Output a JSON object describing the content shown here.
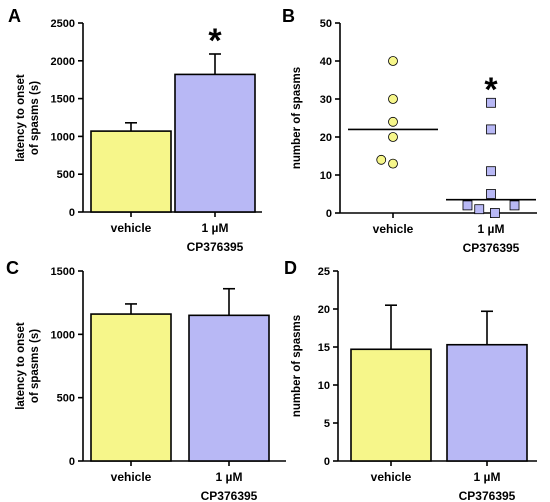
{
  "panels": {
    "A": {
      "letter": "A"
    },
    "B": {
      "letter": "B"
    },
    "C": {
      "letter": "C"
    },
    "D": {
      "letter": "D"
    }
  },
  "chart_data": [
    {
      "panel": "A",
      "type": "bar",
      "categories": [
        "vehicle",
        "1 µM"
      ],
      "category_sublabels": [
        "",
        "CP376395"
      ],
      "values": [
        1070,
        1820
      ],
      "errors": [
        110,
        270
      ],
      "colors": [
        "#f6f68a",
        "#b8b8f5"
      ],
      "ylabel": [
        "latency to onset",
        "of spasms (s)"
      ],
      "ylim": [
        0,
        2500
      ],
      "yticks": [
        0,
        500,
        1000,
        1500,
        2000,
        2500
      ],
      "annotations": [
        {
          "category": "1 µM",
          "text": "*"
        }
      ]
    },
    {
      "panel": "B",
      "type": "scatter",
      "categories": [
        "vehicle",
        "1 µM"
      ],
      "category_sublabels": [
        "",
        "CP376395"
      ],
      "points": [
        {
          "category": "vehicle",
          "y": 40,
          "jitter": 0
        },
        {
          "category": "vehicle",
          "y": 30,
          "jitter": 0
        },
        {
          "category": "vehicle",
          "y": 24,
          "jitter": 0
        },
        {
          "category": "vehicle",
          "y": 20,
          "jitter": 0
        },
        {
          "category": "vehicle",
          "y": 14,
          "jitter": -0.12
        },
        {
          "category": "vehicle",
          "y": 13,
          "jitter": 0
        },
        {
          "category": "1 µM",
          "y": 29,
          "jitter": 0
        },
        {
          "category": "1 µM",
          "y": 22,
          "jitter": 0
        },
        {
          "category": "1 µM",
          "y": 11,
          "jitter": 0
        },
        {
          "category": "1 µM",
          "y": 5,
          "jitter": 0
        },
        {
          "category": "1 µM",
          "y": 2,
          "jitter": -0.24
        },
        {
          "category": "1 µM",
          "y": 2,
          "jitter": 0.24
        },
        {
          "category": "1 µM",
          "y": 1,
          "jitter": -0.12
        },
        {
          "category": "1 µM",
          "y": 0,
          "jitter": 0.04
        }
      ],
      "means": [
        22,
        3.5
      ],
      "marker_colors": [
        "#f6f68a",
        "#b8b8f5"
      ],
      "marker_shapes": [
        "circle",
        "square"
      ],
      "ylabel": [
        "number of spasms"
      ],
      "ylim": [
        0,
        50
      ],
      "yticks": [
        0,
        10,
        20,
        30,
        40,
        50
      ],
      "annotations": [
        {
          "category": "1 µM",
          "text": "*"
        }
      ]
    },
    {
      "panel": "C",
      "type": "bar",
      "categories": [
        "vehicle",
        "1 µM"
      ],
      "category_sublabels": [
        "",
        "CP376395"
      ],
      "values": [
        1160,
        1150
      ],
      "errors": [
        80,
        210
      ],
      "colors": [
        "#f6f68a",
        "#b8b8f5"
      ],
      "ylabel": [
        "latency to onset",
        "of spasms (s)"
      ],
      "ylim": [
        0,
        1500
      ],
      "yticks": [
        0,
        500,
        1000,
        1500
      ],
      "annotations": []
    },
    {
      "panel": "D",
      "type": "bar",
      "categories": [
        "vehicle",
        "1 µM"
      ],
      "category_sublabels": [
        "",
        "CP376395"
      ],
      "values": [
        14.7,
        15.3
      ],
      "errors": [
        5.8,
        4.4
      ],
      "colors": [
        "#f6f68a",
        "#b8b8f5"
      ],
      "ylabel": [
        "number of spasms"
      ],
      "ylim": [
        0,
        25
      ],
      "yticks": [
        0,
        5,
        10,
        15,
        20,
        25
      ],
      "annotations": []
    }
  ]
}
